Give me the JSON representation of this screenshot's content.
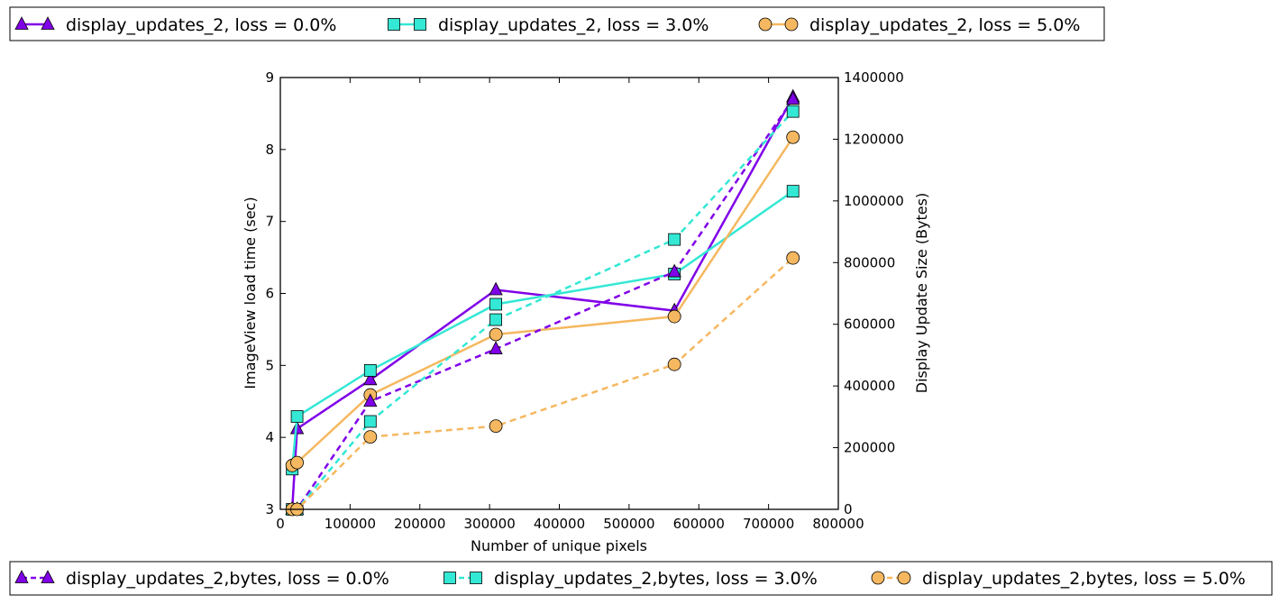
{
  "chart_data": {
    "type": "line",
    "title": "",
    "xlabel": "Number of unique pixels",
    "ylabel_left": "ImageView load time (sec)",
    "ylabel_right": "Display Update Size (Bytes)",
    "xlim": [
      0,
      800000
    ],
    "ylim_left": [
      3,
      9
    ],
    "ylim_right": [
      0,
      1400000
    ],
    "x_ticks": [
      "0",
      "100000",
      "200000",
      "300000",
      "400000",
      "500000",
      "600000",
      "700000",
      "800000"
    ],
    "y_left_ticks": [
      "3",
      "4",
      "5",
      "6",
      "7",
      "8",
      "9"
    ],
    "y_right_ticks": [
      "0",
      "200000",
      "400000",
      "600000",
      "800000",
      "1000000",
      "1200000",
      "1400000"
    ],
    "grid": false,
    "legend_top_placement": "above plot",
    "legend_bottom_placement": "below plot",
    "series": [
      {
        "name": "display_updates_2, loss = 0.0%",
        "axis": "left",
        "style": "solid",
        "marker": "triangle",
        "color": "#8000e8",
        "x": [
          17000,
          24000,
          129000,
          309000,
          565000,
          735000
        ],
        "y": [
          3.0,
          4.12,
          4.8,
          6.05,
          5.76,
          8.73
        ]
      },
      {
        "name": "display_updates_2, loss = 3.0%",
        "axis": "left",
        "style": "solid",
        "marker": "square",
        "color": "#33e8d4",
        "x": [
          17000,
          24000,
          129000,
          309000,
          565000,
          735000
        ],
        "y": [
          3.56,
          4.29,
          4.93,
          5.85,
          6.27,
          7.42
        ]
      },
      {
        "name": "display_updates_2, loss = 5.0%",
        "axis": "left",
        "style": "solid",
        "marker": "circle",
        "color": "#f5b860",
        "x": [
          17000,
          24000,
          129000,
          309000,
          565000,
          735000
        ],
        "y": [
          3.61,
          3.65,
          4.59,
          5.43,
          5.68,
          8.17
        ]
      },
      {
        "name": "display_updates_2,bytes, loss = 0.0%",
        "axis": "right",
        "style": "dashed",
        "marker": "triangle",
        "color": "#8000e8",
        "x": [
          17000,
          24000,
          129000,
          309000,
          565000,
          735000
        ],
        "y": [
          0,
          0,
          350000,
          520000,
          770000,
          1330000
        ]
      },
      {
        "name": "display_updates_2,bytes, loss = 3.0%",
        "axis": "right",
        "style": "dashed",
        "marker": "square",
        "color": "#33e8d4",
        "x": [
          17000,
          24000,
          129000,
          309000,
          565000,
          735000
        ],
        "y": [
          0,
          0,
          285000,
          615000,
          875000,
          1290000
        ]
      },
      {
        "name": "display_updates_2,bytes, loss = 5.0%",
        "axis": "right",
        "style": "dashed",
        "marker": "circle",
        "color": "#f5b860",
        "x": [
          17000,
          24000,
          129000,
          309000,
          565000,
          735000
        ],
        "y": [
          0,
          0,
          235000,
          270000,
          470000,
          815000
        ]
      }
    ]
  }
}
